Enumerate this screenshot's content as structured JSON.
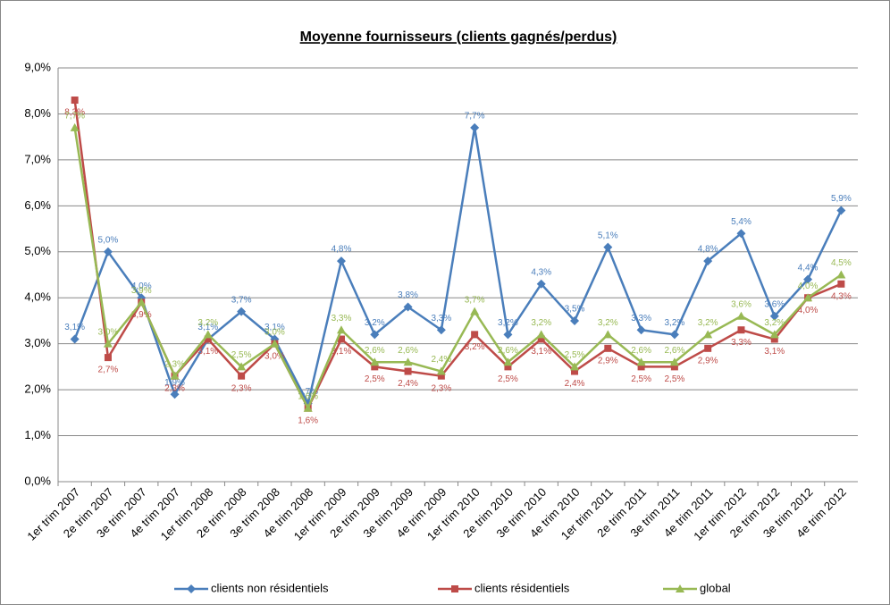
{
  "chart_data": {
    "type": "line",
    "title": "Moyenne fournisseurs (clients gagnés/perdus)",
    "categories": [
      "1er trim 2007",
      "2e trim 2007",
      "3e trim 2007",
      "4e trim 2007",
      "1er trim 2008",
      "2e trim 2008",
      "3e trim 2008",
      "4e trim 2008",
      "1er trim 2009",
      "2e trim 2009",
      "3e trim 2009",
      "4e trim 2009",
      "1er trim 2010",
      "2e trim 2010",
      "3e trim 2010",
      "4e trim 2010",
      "1er trim 2011",
      "2e trim 2011",
      "3e trim 2011",
      "4e trim 2011",
      "1er trim 2012",
      "2e trim 2012",
      "3e trim 2012",
      "4e trim 2012"
    ],
    "series": [
      {
        "name": "clients non résidentiels",
        "color": "#4a7ebb",
        "marker": "diamond",
        "values": [
          3.1,
          5.0,
          4.0,
          1.9,
          3.1,
          3.7,
          3.1,
          1.7,
          4.8,
          3.2,
          3.8,
          3.3,
          7.7,
          3.2,
          4.3,
          3.5,
          5.1,
          3.3,
          3.2,
          4.8,
          5.4,
          3.6,
          4.4,
          5.9
        ],
        "value_labels": [
          "3,1%",
          "5,0%",
          "4,0%",
          "1,9%",
          "3,1%",
          "3,7%",
          "3,1%",
          "1,7%",
          "4,8%",
          "3,2%",
          "3,8%",
          "3,3%",
          "7,7%",
          "3,2%",
          "4,3%",
          "3,5%",
          "5,1%",
          "3,3%",
          "3,2%",
          "4,8%",
          "5,4%",
          "3,6%",
          "4,4%",
          "5,9%"
        ]
      },
      {
        "name": "clients résidentiels",
        "color": "#be4b48",
        "marker": "square",
        "values": [
          8.3,
          2.7,
          3.9,
          2.3,
          3.1,
          2.3,
          3.0,
          1.6,
          3.1,
          2.5,
          2.4,
          2.3,
          3.2,
          2.5,
          3.1,
          2.4,
          2.9,
          2.5,
          2.5,
          2.9,
          3.3,
          3.1,
          4.0,
          4.3
        ],
        "value_labels": [
          "8,3%",
          "2,7%",
          "3,9%",
          "2,3%",
          "3,1%",
          "2,3%",
          "3,0%",
          "1,6%",
          "3,1%",
          "2,5%",
          "2,4%",
          "2,3%",
          "3,2%",
          "2,5%",
          "3,1%",
          "2,4%",
          "2,9%",
          "2,5%",
          "2,5%",
          "2,9%",
          "3,3%",
          "3,1%",
          "4,0%",
          "4,3%"
        ]
      },
      {
        "name": "global",
        "color": "#98b954",
        "marker": "triangle",
        "values": [
          7.7,
          3.0,
          3.9,
          2.3,
          3.2,
          2.5,
          3.0,
          1.6,
          3.3,
          2.6,
          2.6,
          2.4,
          3.7,
          2.6,
          3.2,
          2.5,
          3.2,
          2.6,
          2.6,
          3.2,
          3.6,
          3.2,
          4.0,
          4.5
        ],
        "value_labels": [
          "7,7%",
          "3,0%",
          "3,9%",
          "2,3%",
          "3,2%",
          "2,5%",
          "3,0%",
          "1,6%",
          "3,3%",
          "2,6%",
          "2,6%",
          "2,4%",
          "3,7%",
          "2,6%",
          "3,2%",
          "2,5%",
          "3,2%",
          "2,6%",
          "2,6%",
          "3,2%",
          "3,6%",
          "3,2%",
          "4,0%",
          "4,5%"
        ]
      }
    ],
    "ylim": [
      0,
      9
    ],
    "yticks": [
      {
        "value": 0,
        "label": "0,0%"
      },
      {
        "value": 1,
        "label": "1,0%"
      },
      {
        "value": 2,
        "label": "2,0%"
      },
      {
        "value": 3,
        "label": "3,0%"
      },
      {
        "value": 4,
        "label": "4,0%"
      },
      {
        "value": 5,
        "label": "5,0%"
      },
      {
        "value": 6,
        "label": "6,0%"
      },
      {
        "value": 7,
        "label": "7,0%"
      },
      {
        "value": 8,
        "label": "8,0%"
      },
      {
        "value": 9,
        "label": "9,0%"
      }
    ],
    "grid": true,
    "legend": "bottom"
  }
}
